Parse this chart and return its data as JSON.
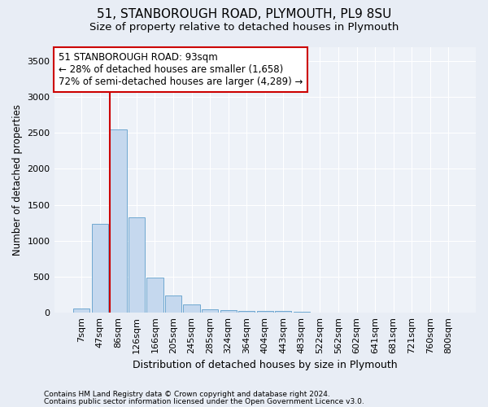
{
  "title": "51, STANBOROUGH ROAD, PLYMOUTH, PL9 8SU",
  "subtitle": "Size of property relative to detached houses in Plymouth",
  "xlabel": "Distribution of detached houses by size in Plymouth",
  "ylabel": "Number of detached properties",
  "bar_color": "#c5d8ee",
  "bar_edge_color": "#6fa8d0",
  "vline_color": "#cc0000",
  "vline_x_index": 2,
  "annotation_text": "51 STANBOROUGH ROAD: 93sqm\n← 28% of detached houses are smaller (1,658)\n72% of semi-detached houses are larger (4,289) →",
  "annotation_box_color": "#ffffff",
  "annotation_border_color": "#cc0000",
  "categories": [
    "7sqm",
    "47sqm",
    "86sqm",
    "126sqm",
    "166sqm",
    "205sqm",
    "245sqm",
    "285sqm",
    "324sqm",
    "364sqm",
    "404sqm",
    "443sqm",
    "483sqm",
    "522sqm",
    "562sqm",
    "602sqm",
    "641sqm",
    "681sqm",
    "721sqm",
    "760sqm",
    "800sqm"
  ],
  "values": [
    55,
    1230,
    2550,
    1320,
    490,
    235,
    115,
    48,
    28,
    20,
    18,
    15,
    12,
    0,
    0,
    0,
    0,
    0,
    0,
    0,
    0
  ],
  "ylim": [
    0,
    3700
  ],
  "yticks": [
    0,
    500,
    1000,
    1500,
    2000,
    2500,
    3000,
    3500
  ],
  "footer1": "Contains HM Land Registry data © Crown copyright and database right 2024.",
  "footer2": "Contains public sector information licensed under the Open Government Licence v3.0.",
  "background_color": "#e8edf5",
  "plot_bg_color": "#eef2f8",
  "grid_color": "#ffffff",
  "title_fontsize": 11,
  "subtitle_fontsize": 9.5,
  "ylabel_fontsize": 8.5,
  "xlabel_fontsize": 9,
  "tick_fontsize": 8,
  "annotation_fontsize": 8.5
}
